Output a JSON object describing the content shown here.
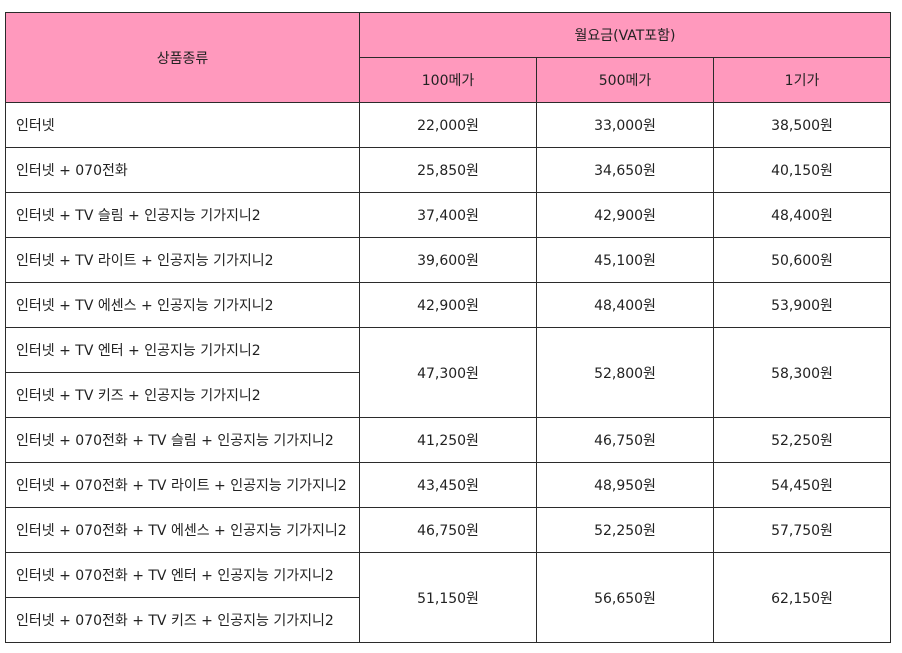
{
  "header": {
    "product_type": "상품종류",
    "monthly_fee": "월요금(VAT포함)",
    "speeds": [
      "100메가",
      "500메가",
      "1기가"
    ]
  },
  "rows": [
    {
      "names": [
        "인터넷"
      ],
      "prices": [
        "22,000원",
        "33,000원",
        "38,500원"
      ]
    },
    {
      "names": [
        "인터넷 + 070전화"
      ],
      "prices": [
        "25,850원",
        "34,650원",
        "40,150원"
      ]
    },
    {
      "names": [
        "인터넷 + TV 슬림 + 인공지능 기가지니2"
      ],
      "prices": [
        "37,400원",
        "42,900원",
        "48,400원"
      ]
    },
    {
      "names": [
        "인터넷 + TV 라이트 + 인공지능 기가지니2"
      ],
      "prices": [
        "39,600원",
        "45,100원",
        "50,600원"
      ]
    },
    {
      "names": [
        "인터넷 + TV 에센스 + 인공지능 기가지니2"
      ],
      "prices": [
        "42,900원",
        "48,400원",
        "53,900원"
      ]
    },
    {
      "names": [
        "인터넷 + TV 엔터 + 인공지능 기가지니2",
        "인터넷 + TV 키즈 + 인공지능 기가지니2"
      ],
      "prices": [
        "47,300원",
        "52,800원",
        "58,300원"
      ]
    },
    {
      "names": [
        "인터넷 + 070전화 + TV 슬림 + 인공지능 기가지니2"
      ],
      "prices": [
        "41,250원",
        "46,750원",
        "52,250원"
      ]
    },
    {
      "names": [
        "인터넷 + 070전화 + TV 라이트 + 인공지능 기가지니2"
      ],
      "prices": [
        "43,450원",
        "48,950원",
        "54,450원"
      ]
    },
    {
      "names": [
        "인터넷 + 070전화 + TV 에센스 + 인공지능 기가지니2"
      ],
      "prices": [
        "46,750원",
        "52,250원",
        "57,750원"
      ]
    },
    {
      "names": [
        "인터넷 + 070전화 + TV 엔터 + 인공지능 기가지니2",
        "인터넷 + 070전화 + TV 키즈 + 인공지능 기가지니2"
      ],
      "prices": [
        "51,150원",
        "56,650원",
        "62,150원"
      ]
    }
  ],
  "colors": {
    "header_bg": "#ff99bd",
    "border": "#2b2b2b"
  }
}
